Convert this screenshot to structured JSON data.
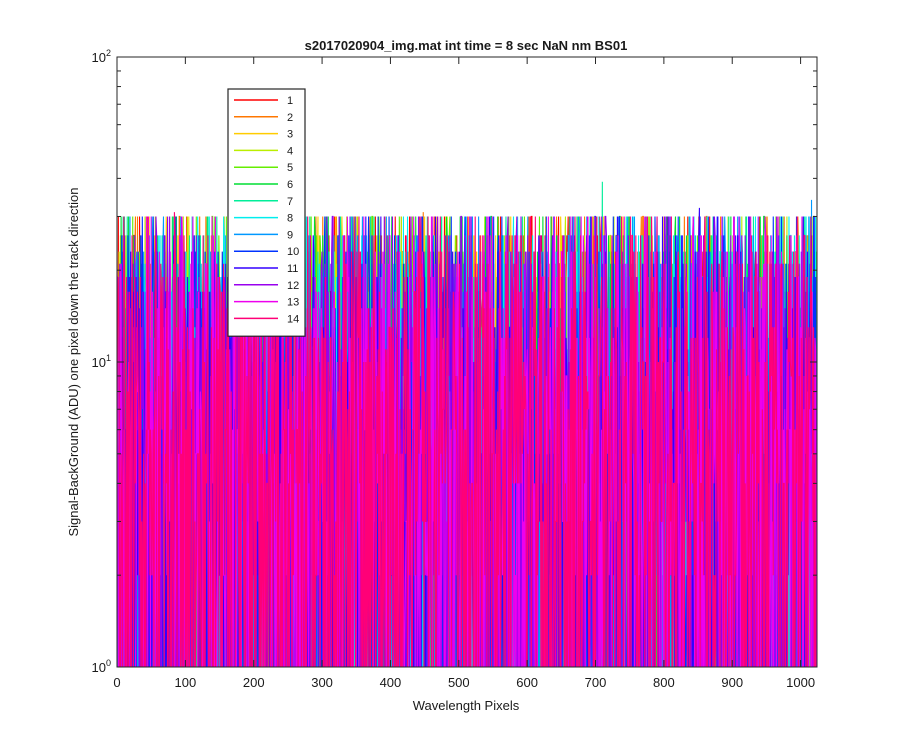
{
  "chart_data": {
    "type": "line",
    "title": "s2017020904_img.mat int time = 8 sec  NaN nm BS01",
    "xlabel": "Wavelength Pixels",
    "ylabel": "Signal-BackGround (ADU) one pixel down the track direction",
    "xlim": [
      0,
      1024
    ],
    "ylim": [
      1,
      100
    ],
    "yscale": "log",
    "x_ticks": [
      "0",
      "100",
      "200",
      "300",
      "400",
      "500",
      "600",
      "700",
      "800",
      "900",
      "1000"
    ],
    "y_ticks": [
      {
        "base": "10",
        "exp": "0"
      },
      {
        "base": "10",
        "exp": "1"
      },
      {
        "base": "10",
        "exp": "2"
      }
    ],
    "grid": false,
    "legend_position": "top-left",
    "series": [
      {
        "name": "1",
        "color": "#ff0000"
      },
      {
        "name": "2",
        "color": "#ff7700"
      },
      {
        "name": "3",
        "color": "#ffcc00"
      },
      {
        "name": "4",
        "color": "#bbee00"
      },
      {
        "name": "5",
        "color": "#66ee00"
      },
      {
        "name": "6",
        "color": "#00dd33"
      },
      {
        "name": "7",
        "color": "#00ee99"
      },
      {
        "name": "8",
        "color": "#00eeee"
      },
      {
        "name": "9",
        "color": "#0099ff"
      },
      {
        "name": "10",
        "color": "#0033ff"
      },
      {
        "name": "11",
        "color": "#3300ff"
      },
      {
        "name": "12",
        "color": "#9900ee"
      },
      {
        "name": "13",
        "color": "#ee00ee"
      },
      {
        "name": "14",
        "color": "#ff0077"
      }
    ],
    "value_model": {
      "description": "Each series is integer-valued noise over x = 0..1023; values 1 to ~40 ADU on a log axis.",
      "distribution_values": [
        1,
        1,
        1,
        2,
        2,
        3,
        3,
        4,
        4,
        5,
        5,
        6,
        6,
        7,
        8,
        9,
        10,
        11,
        12,
        13,
        15,
        17,
        19,
        21,
        23,
        26,
        30
      ],
      "peaks": [
        {
          "series": "7",
          "x": 710,
          "y": 39
        },
        {
          "series": "9",
          "x": 1016,
          "y": 34
        },
        {
          "series": "1",
          "x": 2,
          "y": 30
        },
        {
          "series": "14",
          "x": 84,
          "y": 31
        },
        {
          "series": "2",
          "x": 448,
          "y": 31
        },
        {
          "series": "11",
          "x": 852,
          "y": 32
        }
      ]
    }
  }
}
